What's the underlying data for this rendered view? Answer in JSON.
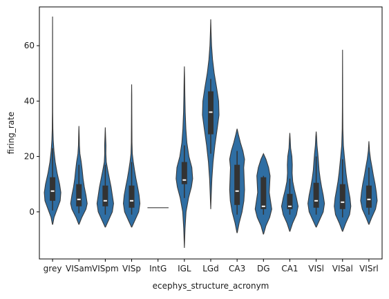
{
  "chart_data": {
    "type": "violin",
    "xlabel": "ecephys_structure_acronym",
    "ylabel": "firing_rate",
    "ylim": [
      -17,
      74
    ],
    "yticks": [
      0,
      20,
      40,
      60
    ],
    "grid": false,
    "colors": {
      "fill": "#2f6ea3",
      "edge": "#3a3a3a",
      "box": "#333333",
      "median": "#ffffff"
    },
    "categories": [
      "grey",
      "VISam",
      "VISpm",
      "VISp",
      "IntG",
      "IGL",
      "LGd",
      "CA3",
      "DG",
      "CA1",
      "VISl",
      "VISal",
      "VISrl"
    ],
    "violins": [
      {
        "category": "grey",
        "min": -4.5,
        "max": 70.5,
        "q1": 4,
        "median": 7.5,
        "q3": 12.5,
        "whisker_low": 0.5,
        "whisker_high": 23,
        "profile": [
          [
            -4.5,
            0.02
          ],
          [
            -2,
            0.18
          ],
          [
            1,
            0.55
          ],
          [
            4,
            0.92
          ],
          [
            7,
            1.0
          ],
          [
            10,
            0.85
          ],
          [
            14,
            0.55
          ],
          [
            18,
            0.32
          ],
          [
            22,
            0.17
          ],
          [
            26,
            0.08
          ],
          [
            30,
            0.04
          ],
          [
            36,
            0.02
          ],
          [
            45,
            0.012
          ],
          [
            55,
            0.008
          ],
          [
            65,
            0.005
          ],
          [
            70.5,
            0.0
          ]
        ]
      },
      {
        "category": "VISam",
        "min": -4.5,
        "max": 31,
        "q1": 2,
        "median": 4.5,
        "q3": 10,
        "whisker_low": -0.5,
        "whisker_high": 17,
        "profile": [
          [
            -4.5,
            0.02
          ],
          [
            -2,
            0.35
          ],
          [
            1,
            0.85
          ],
          [
            3,
            1.0
          ],
          [
            6,
            0.85
          ],
          [
            9,
            0.65
          ],
          [
            12,
            0.5
          ],
          [
            15,
            0.4
          ],
          [
            18,
            0.28
          ],
          [
            21,
            0.12
          ],
          [
            24,
            0.06
          ],
          [
            27,
            0.04
          ],
          [
            31,
            0.0
          ]
        ]
      },
      {
        "category": "VISpm",
        "min": -5.5,
        "max": 30.5,
        "q1": 2,
        "median": 4,
        "q3": 9.5,
        "whisker_low": -1,
        "whisker_high": 17,
        "profile": [
          [
            -5.5,
            0.02
          ],
          [
            -3,
            0.4
          ],
          [
            0,
            0.85
          ],
          [
            3,
            1.0
          ],
          [
            6,
            0.85
          ],
          [
            9,
            0.7
          ],
          [
            12,
            0.5
          ],
          [
            15,
            0.3
          ],
          [
            18,
            0.12
          ],
          [
            21,
            0.07
          ],
          [
            24,
            0.08
          ],
          [
            27,
            0.04
          ],
          [
            30.5,
            0.0
          ]
        ]
      },
      {
        "category": "VISp",
        "min": -5.5,
        "max": 46,
        "q1": 1.5,
        "median": 4,
        "q3": 9.5,
        "whisker_low": -1,
        "whisker_high": 18,
        "profile": [
          [
            -5.5,
            0.02
          ],
          [
            -3,
            0.4
          ],
          [
            0,
            0.85
          ],
          [
            3,
            1.0
          ],
          [
            6,
            0.9
          ],
          [
            9,
            0.72
          ],
          [
            12,
            0.52
          ],
          [
            15,
            0.35
          ],
          [
            18,
            0.2
          ],
          [
            21,
            0.08
          ],
          [
            25,
            0.04
          ],
          [
            30,
            0.03
          ],
          [
            36,
            0.02
          ],
          [
            42,
            0.015
          ],
          [
            46,
            0.0
          ]
        ]
      },
      {
        "category": "IntG",
        "min": 1.5,
        "max": 1.5,
        "flat": true,
        "value": 1.5
      },
      {
        "category": "IGL",
        "min": -13,
        "max": 52.5,
        "q1": 10,
        "median": 11.5,
        "q3": 18,
        "whisker_low": 5,
        "whisker_high": 24,
        "profile": [
          [
            -13,
            0.0
          ],
          [
            -6,
            0.08
          ],
          [
            0,
            0.2
          ],
          [
            5,
            0.5
          ],
          [
            9,
            0.85
          ],
          [
            12,
            1.0
          ],
          [
            16,
            0.9
          ],
          [
            20,
            0.55
          ],
          [
            25,
            0.3
          ],
          [
            30,
            0.18
          ],
          [
            36,
            0.1
          ],
          [
            42,
            0.06
          ],
          [
            48,
            0.03
          ],
          [
            52.5,
            0.0
          ]
        ]
      },
      {
        "category": "LGd",
        "min": 1,
        "max": 69.5,
        "q1": 28,
        "median": 36,
        "q3": 43.5,
        "whisker_low": 21,
        "whisker_high": 48,
        "profile": [
          [
            1,
            0.0
          ],
          [
            6,
            0.06
          ],
          [
            12,
            0.14
          ],
          [
            18,
            0.28
          ],
          [
            24,
            0.5
          ],
          [
            30,
            0.78
          ],
          [
            35,
            1.0
          ],
          [
            40,
            0.95
          ],
          [
            45,
            0.7
          ],
          [
            50,
            0.42
          ],
          [
            55,
            0.22
          ],
          [
            60,
            0.1
          ],
          [
            65,
            0.04
          ],
          [
            69.5,
            0.0
          ]
        ]
      },
      {
        "category": "CA3",
        "min": -7.5,
        "max": 30,
        "q1": 2.5,
        "median": 7.5,
        "q3": 17,
        "whisker_low": -1,
        "whisker_high": 22,
        "profile": [
          [
            -7.5,
            0.02
          ],
          [
            -4,
            0.25
          ],
          [
            0,
            0.6
          ],
          [
            4,
            0.82
          ],
          [
            8,
            0.9
          ],
          [
            12,
            0.85
          ],
          [
            16,
            0.8
          ],
          [
            19,
            0.9
          ],
          [
            22,
            0.7
          ],
          [
            25,
            0.4
          ],
          [
            28,
            0.15
          ],
          [
            30,
            0.0
          ]
        ]
      },
      {
        "category": "DG",
        "min": -8,
        "max": 21,
        "q1": 1,
        "median": 2,
        "q3": 12.5,
        "whisker_low": -1,
        "whisker_high": 13,
        "profile": [
          [
            -8,
            0.02
          ],
          [
            -5,
            0.3
          ],
          [
            -2,
            0.75
          ],
          [
            1,
            1.0
          ],
          [
            4,
            0.85
          ],
          [
            7,
            0.7
          ],
          [
            10,
            0.75
          ],
          [
            13,
            0.8
          ],
          [
            16,
            0.62
          ],
          [
            19,
            0.3
          ],
          [
            21,
            0.0
          ]
        ]
      },
      {
        "category": "CA1",
        "min": -7,
        "max": 28.5,
        "q1": 1,
        "median": 2,
        "q3": 6.5,
        "whisker_low": -1,
        "whisker_high": 12,
        "profile": [
          [
            -7,
            0.02
          ],
          [
            -4,
            0.35
          ],
          [
            -1,
            0.8
          ],
          [
            2,
            1.0
          ],
          [
            5,
            0.8
          ],
          [
            8,
            0.55
          ],
          [
            11,
            0.35
          ],
          [
            14,
            0.28
          ],
          [
            17,
            0.3
          ],
          [
            20,
            0.25
          ],
          [
            23,
            0.1
          ],
          [
            26,
            0.05
          ],
          [
            28.5,
            0.0
          ]
        ]
      },
      {
        "category": "VISl",
        "min": -5.5,
        "max": 29,
        "q1": 1.5,
        "median": 4,
        "q3": 10.5,
        "whisker_low": -1,
        "whisker_high": 20,
        "profile": [
          [
            -5.5,
            0.02
          ],
          [
            -3,
            0.4
          ],
          [
            0,
            0.85
          ],
          [
            3,
            1.0
          ],
          [
            6,
            0.85
          ],
          [
            9,
            0.65
          ],
          [
            12,
            0.48
          ],
          [
            15,
            0.35
          ],
          [
            18,
            0.28
          ],
          [
            21,
            0.2
          ],
          [
            24,
            0.1
          ],
          [
            27,
            0.05
          ],
          [
            29,
            0.0
          ]
        ]
      },
      {
        "category": "VISal",
        "min": -7,
        "max": 58.5,
        "q1": 1,
        "median": 3.5,
        "q3": 10,
        "whisker_low": -2,
        "whisker_high": 19,
        "profile": [
          [
            -7,
            0.02
          ],
          [
            -4,
            0.4
          ],
          [
            -1,
            0.85
          ],
          [
            2,
            1.0
          ],
          [
            5,
            0.9
          ],
          [
            8,
            0.72
          ],
          [
            11,
            0.55
          ],
          [
            14,
            0.42
          ],
          [
            17,
            0.32
          ],
          [
            20,
            0.22
          ],
          [
            24,
            0.1
          ],
          [
            30,
            0.04
          ],
          [
            38,
            0.02
          ],
          [
            48,
            0.012
          ],
          [
            58.5,
            0.0
          ]
        ]
      },
      {
        "category": "VISrl",
        "min": -4.5,
        "max": 25.5,
        "q1": 1.5,
        "median": 4.5,
        "q3": 9.5,
        "whisker_low": -1,
        "whisker_high": 16,
        "profile": [
          [
            -4.5,
            0.02
          ],
          [
            -2,
            0.35
          ],
          [
            1,
            0.8
          ],
          [
            4,
            1.0
          ],
          [
            7,
            0.9
          ],
          [
            10,
            0.75
          ],
          [
            13,
            0.55
          ],
          [
            16,
            0.38
          ],
          [
            19,
            0.2
          ],
          [
            22,
            0.07
          ],
          [
            25.5,
            0.0
          ]
        ]
      }
    ]
  }
}
